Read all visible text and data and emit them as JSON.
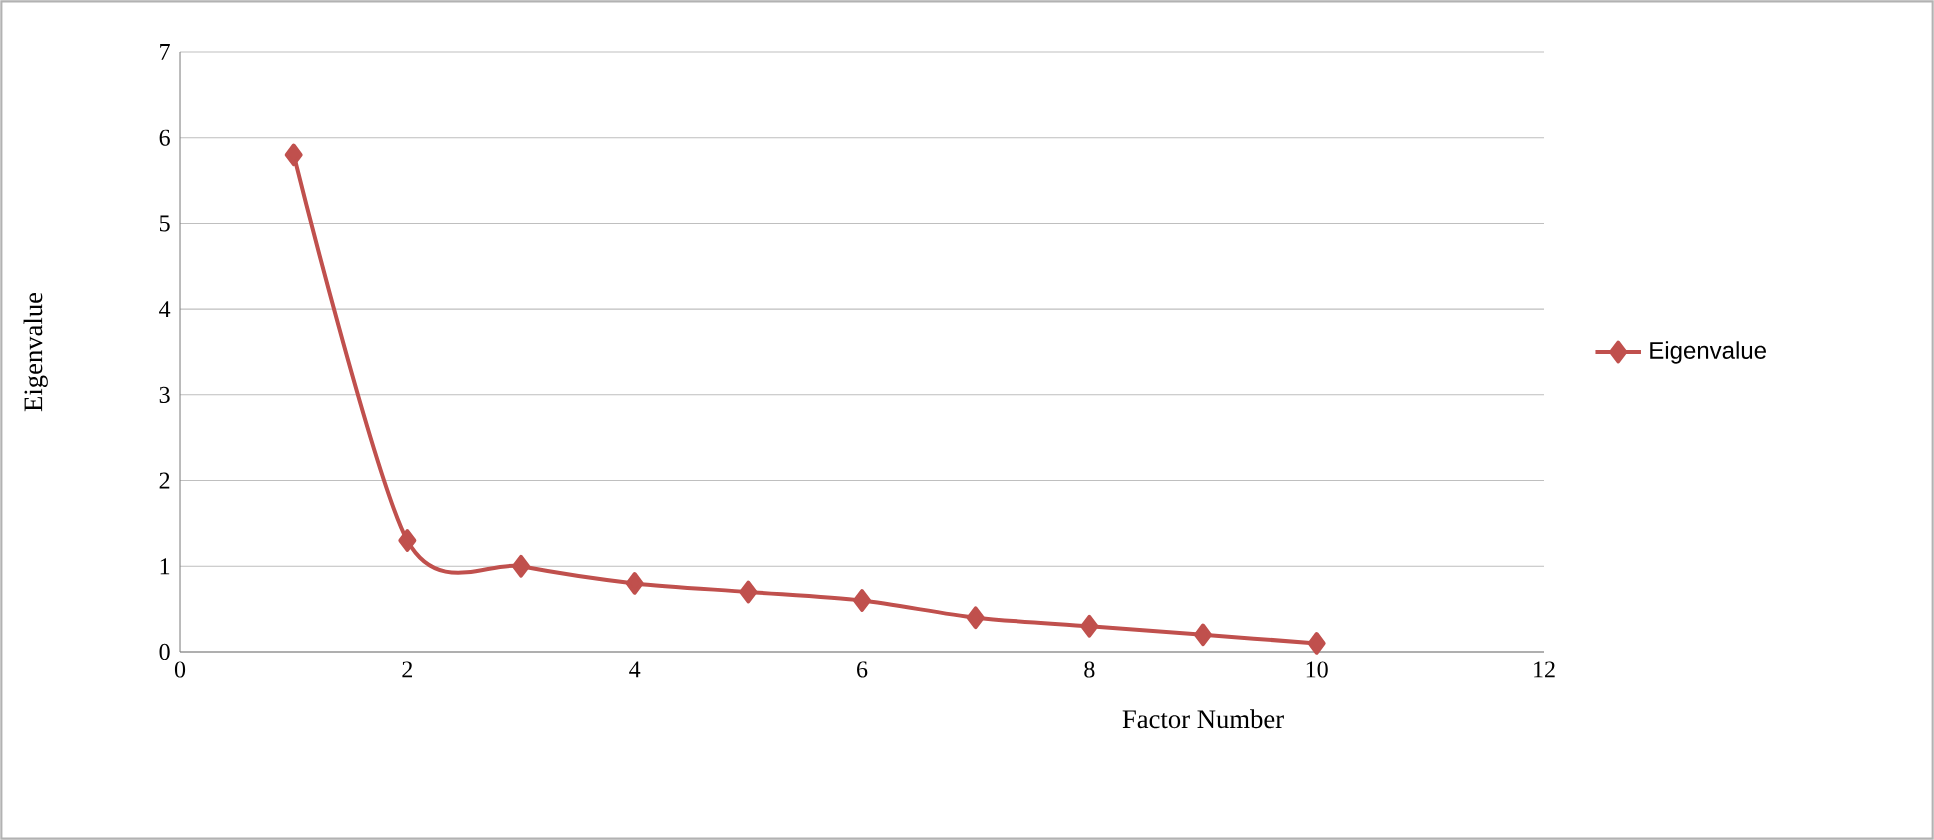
{
  "chart_data": {
    "type": "line",
    "xlabel": "Factor Number",
    "ylabel": "Eigenvalue",
    "x": [
      1,
      2,
      3,
      4,
      5,
      6,
      7,
      8,
      9,
      10
    ],
    "series": [
      {
        "name": "Eigenvalue",
        "color": "#c0504d",
        "values": [
          5.8,
          1.3,
          1.0,
          0.8,
          0.7,
          0.6,
          0.4,
          0.3,
          0.2,
          0.1
        ]
      }
    ],
    "xlim": [
      0,
      12
    ],
    "xticks": [
      0,
      2,
      4,
      6,
      8,
      10,
      12
    ],
    "ylim": [
      0,
      7
    ],
    "yticks": [
      0,
      1,
      2,
      3,
      4,
      5,
      6,
      7
    ],
    "grid": "y",
    "legend": "right",
    "marker": "diamond",
    "line_style": "solid"
  }
}
